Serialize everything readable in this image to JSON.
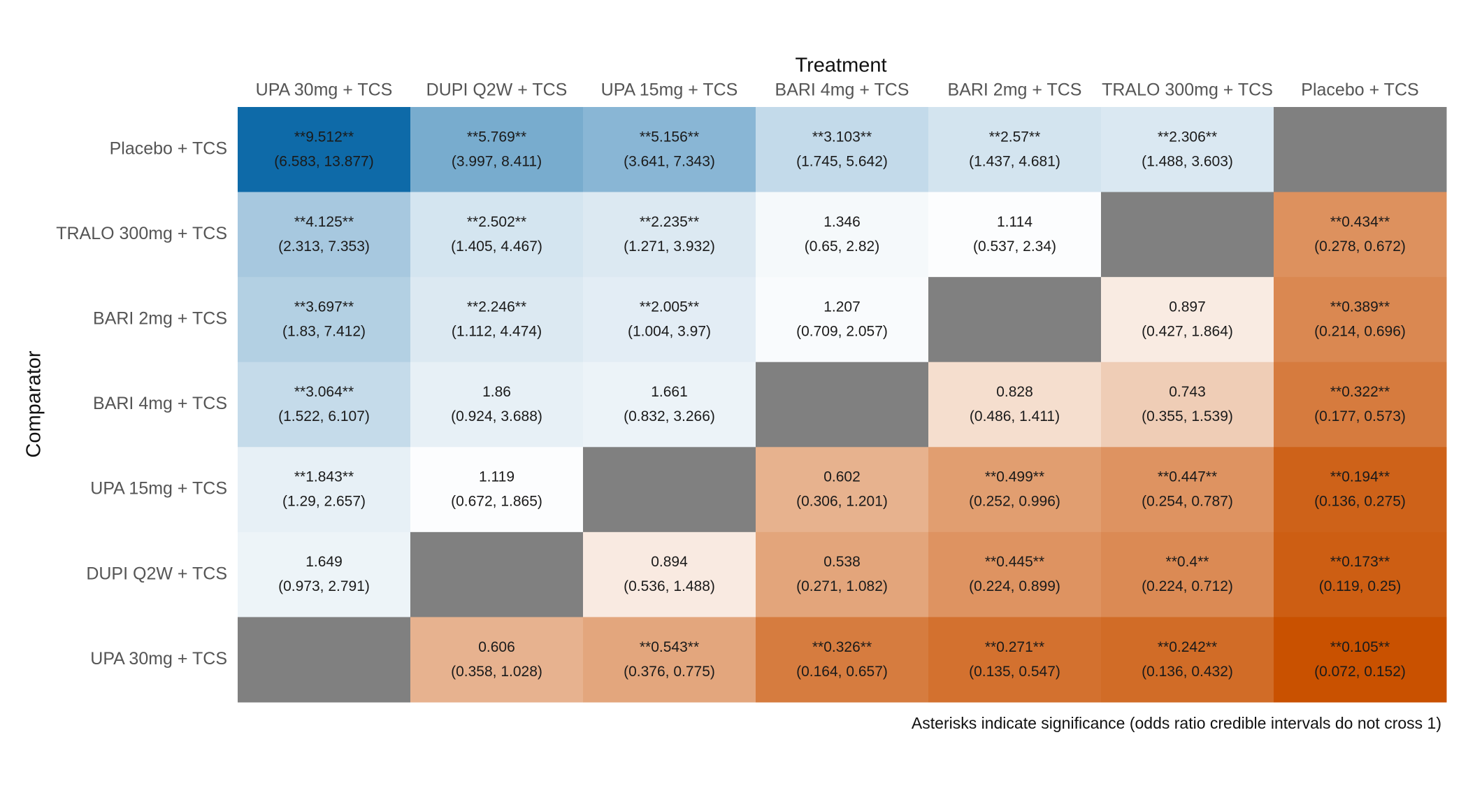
{
  "chart_data": {
    "type": "heatmap",
    "x_label": "Treatment",
    "y_label": "Comparator",
    "x_categories": [
      "UPA 30mg + TCS",
      "DUPI Q2W + TCS",
      "UPA 15mg + TCS",
      "BARI 4mg + TCS",
      "BARI 2mg + TCS",
      "TRALO 300mg + TCS",
      "Placebo + TCS"
    ],
    "y_categories": [
      "Placebo + TCS",
      "TRALO 300mg + TCS",
      "BARI 2mg + TCS",
      "BARI 4mg + TCS",
      "UPA 15mg + TCS",
      "DUPI Q2W + TCS",
      "UPA 30mg + TCS"
    ],
    "values": [
      [
        9.512,
        5.769,
        5.156,
        3.103,
        2.57,
        2.306,
        null
      ],
      [
        4.125,
        2.502,
        2.235,
        1.346,
        1.114,
        null,
        0.434
      ],
      [
        3.697,
        2.246,
        2.005,
        1.207,
        null,
        0.897,
        0.389
      ],
      [
        3.064,
        1.86,
        1.661,
        null,
        0.828,
        0.743,
        0.322
      ],
      [
        1.843,
        1.119,
        null,
        0.602,
        0.499,
        0.447,
        0.194
      ],
      [
        1.649,
        null,
        0.894,
        0.538,
        0.445,
        0.4,
        0.173
      ],
      [
        null,
        0.606,
        0.543,
        0.326,
        0.271,
        0.242,
        0.105
      ]
    ],
    "value_labels": [
      [
        "**9.512**",
        "**5.769**",
        "**5.156**",
        "**3.103**",
        "**2.57**",
        "**2.306**",
        null
      ],
      [
        "**4.125**",
        "**2.502**",
        "**2.235**",
        "1.346",
        "1.114",
        null,
        "**0.434**"
      ],
      [
        "**3.697**",
        "**2.246**",
        "**2.005**",
        "1.207",
        null,
        "0.897",
        "**0.389**"
      ],
      [
        "**3.064**",
        "1.86",
        "1.661",
        null,
        "0.828",
        "0.743",
        "**0.322**"
      ],
      [
        "**1.843**",
        "1.119",
        null,
        "0.602",
        "**0.499**",
        "**0.447**",
        "**0.194**"
      ],
      [
        "1.649",
        null,
        "0.894",
        "0.538",
        "**0.445**",
        "**0.4**",
        "**0.173**"
      ],
      [
        null,
        "0.606",
        "**0.543**",
        "**0.326**",
        "**0.271**",
        "**0.242**",
        "**0.105**"
      ]
    ],
    "ci_labels": [
      [
        "(6.583, 13.877)",
        "(3.997, 8.411)",
        "(3.641, 7.343)",
        "(1.745, 5.642)",
        "(1.437, 4.681)",
        "(1.488, 3.603)",
        null
      ],
      [
        "(2.313, 7.353)",
        "(1.405, 4.467)",
        "(1.271, 3.932)",
        "(0.65, 2.82)",
        "(0.537, 2.34)",
        null,
        "(0.278, 0.672)"
      ],
      [
        "(1.83, 7.412)",
        "(1.112, 4.474)",
        "(1.004, 3.97)",
        "(0.709, 2.057)",
        null,
        "(0.427, 1.864)",
        "(0.214, 0.696)"
      ],
      [
        "(1.522, 6.107)",
        "(0.924, 3.688)",
        "(0.832, 3.266)",
        null,
        "(0.486, 1.411)",
        "(0.355, 1.539)",
        "(0.177, 0.573)"
      ],
      [
        "(1.29, 2.657)",
        "(0.672, 1.865)",
        null,
        "(0.306, 1.201)",
        "(0.252, 0.996)",
        "(0.254, 0.787)",
        "(0.136, 0.275)"
      ],
      [
        "(0.973, 2.791)",
        null,
        "(0.536, 1.488)",
        "(0.271, 1.082)",
        "(0.224, 0.899)",
        "(0.224, 0.712)",
        "(0.119, 0.25)"
      ],
      [
        null,
        "(0.358, 1.028)",
        "(0.376, 0.775)",
        "(0.164, 0.657)",
        "(0.135, 0.547)",
        "(0.136, 0.432)",
        "(0.072, 0.152)"
      ]
    ],
    "note": "Asterisks indicate significance (odds ratio credible intervals do not cross 1)",
    "color_high": "#0e6aa8",
    "color_mid": "#ffffff",
    "color_low": "#c95100",
    "missing_color": "#808080"
  }
}
